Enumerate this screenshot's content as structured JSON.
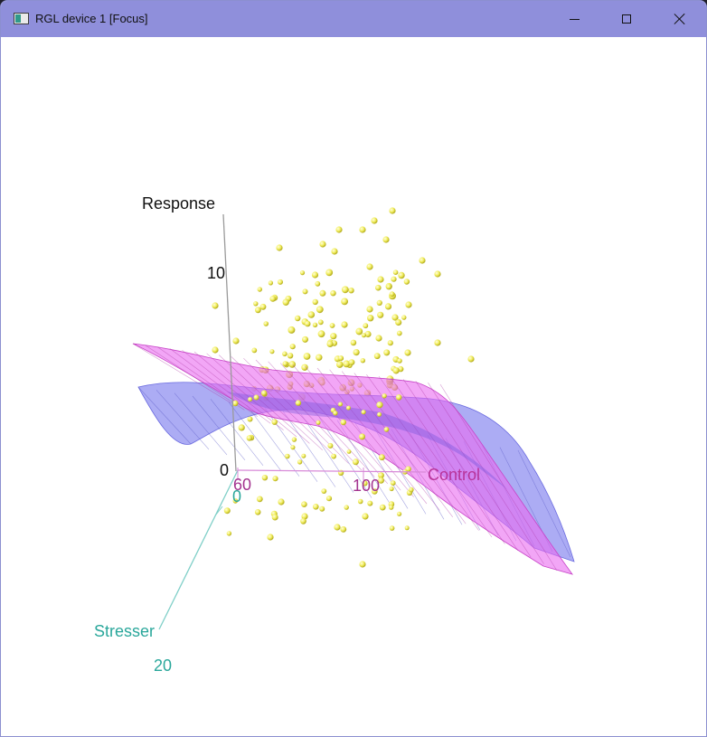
{
  "window": {
    "title": "RGL device 1 [Focus]",
    "icon": "rgl-app-icon",
    "controls": [
      "minimize-icon",
      "maximize-icon",
      "close-icon"
    ]
  },
  "colors": {
    "titlebar": "#8f8fdb",
    "response_axis": "#000000",
    "control_axis": "#b8339a",
    "stresser_axis": "#2aa79b",
    "surface_magenta": "#e86ff0",
    "surface_blue": "#8c8cf0",
    "points": "#f2f06a"
  },
  "axes": {
    "response": {
      "label": "Response",
      "ticks": [
        "10",
        "0"
      ]
    },
    "control": {
      "label": "Control",
      "ticks": [
        "60",
        "100"
      ]
    },
    "stresser": {
      "label": "Stresser",
      "ticks": [
        "0",
        "20"
      ]
    }
  }
}
